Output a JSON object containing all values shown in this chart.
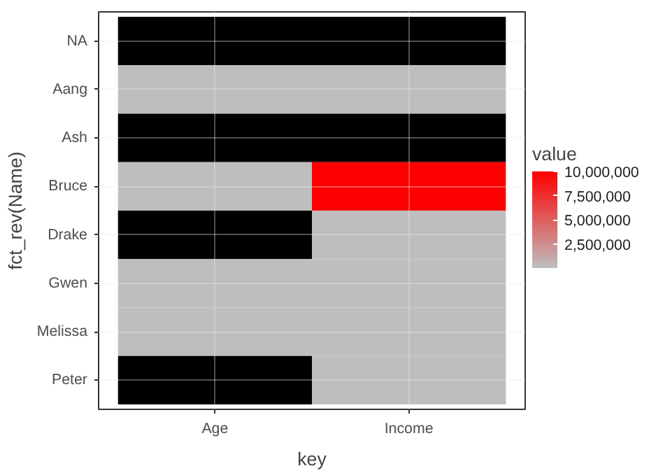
{
  "chart_data": {
    "type": "heatmap",
    "xlabel": "key",
    "ylabel": "fct_rev(Name)",
    "legend_title": "value",
    "categories": [
      "Age",
      "Income"
    ],
    "y_categories": [
      "NA",
      "Aang",
      "Ash",
      "Bruce",
      "Drake",
      "Gwen",
      "Melissa",
      "Peter"
    ],
    "cells": [
      [
        null,
        null
      ],
      [
        0,
        0
      ],
      [
        null,
        null
      ],
      [
        0,
        10000000
      ],
      [
        null,
        0
      ],
      [
        0,
        0
      ],
      [
        0,
        0
      ],
      [
        null,
        0
      ]
    ],
    "colors": [
      "#bebebe",
      "#ff0000"
    ],
    "clim": [
      0,
      10000000
    ],
    "cticks": [
      {
        "value": 2500000,
        "label": "2,500,000"
      },
      {
        "value": 5000000,
        "label": "5,000,000"
      },
      {
        "value": 7500000,
        "label": "7,500,000"
      },
      {
        "value": 10000000,
        "label": "10,000,000"
      }
    ],
    "grid": true
  }
}
